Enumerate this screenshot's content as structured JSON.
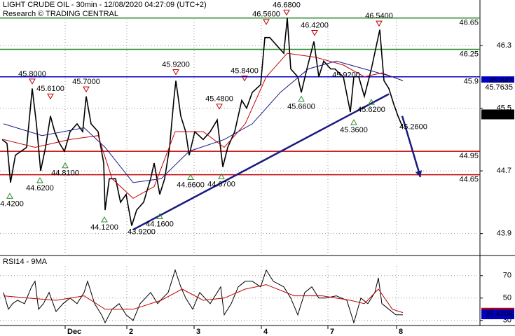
{
  "chart_data": [
    {
      "type": "line",
      "title": "LIGHT CRUDE OIL - 30min - 12/08/2020 04:27:09 (UTC+2)",
      "subtitle": "Research © TRADING CENTRAL",
      "xlim": [
        0,
        342.5
      ],
      "ylim": [
        43.62,
        46.88
      ],
      "yticks": [
        46.3,
        45.5,
        44.7,
        43.9
      ],
      "xticks": [
        {
          "value": 46.5,
          "label": "Dec"
        },
        {
          "value": 90.5,
          "label": "2"
        },
        {
          "value": 138.5,
          "label": "3"
        },
        {
          "value": 186.5,
          "label": "4"
        },
        {
          "value": 234,
          "label": "7"
        },
        {
          "value": 283,
          "label": "8"
        }
      ],
      "series": [
        {
          "color": "#000000",
          "width": 1.6,
          "x": [
            1.5,
            5,
            7.5,
            11,
            15,
            19,
            23,
            26,
            29,
            32.5,
            36,
            39,
            42.5,
            46,
            50,
            55,
            59,
            61.5,
            65,
            70,
            74,
            75,
            78,
            82.5,
            86,
            90,
            94,
            97.5,
            102.5,
            107.5,
            110,
            114,
            117.5,
            121,
            124,
            125.5,
            129,
            132.5,
            135,
            139,
            145,
            150,
            155,
            159,
            162.5,
            167.5,
            172.5,
            176,
            180,
            186,
            189,
            192.5,
            197.5,
            202.5,
            205,
            207.5,
            212.5,
            215,
            219,
            224,
            227.5,
            231,
            236,
            239,
            245,
            250,
            252.5,
            256,
            260,
            265,
            271,
            274,
            277.5,
            281,
            284,
            287.5
          ],
          "values": [
            45.1,
            45.05,
            44.55,
            44.9,
            44.95,
            45.0,
            45.75,
            45.3,
            44.7,
            45.0,
            45.4,
            45.2,
            45.05,
            44.95,
            45.2,
            45.3,
            45.2,
            45.65,
            45.3,
            45.2,
            44.8,
            44.2,
            44.6,
            44.6,
            44.3,
            44.4,
            44.0,
            44.2,
            44.3,
            44.6,
            44.8,
            44.4,
            44.6,
            45.0,
            45.6,
            45.85,
            45.4,
            45.2,
            44.9,
            45.2,
            45.1,
            45.2,
            45.35,
            44.75,
            45.0,
            45.2,
            45.6,
            45.5,
            45.7,
            45.8,
            46.4,
            46.4,
            46.3,
            46.2,
            46.65,
            46.0,
            45.9,
            45.7,
            46.0,
            46.35,
            45.9,
            46.1,
            46.0,
            46.0,
            45.9,
            45.45,
            45.9,
            45.9,
            45.65,
            46.0,
            46.5,
            45.85,
            45.75,
            45.55,
            45.4,
            45.25
          ]
        },
        {
          "color": "#c00000",
          "width": 1,
          "x": [
            2.5,
            25,
            50,
            70,
            80,
            95,
            110,
            125,
            145,
            160,
            175,
            190,
            205,
            225,
            245,
            260,
            272.5,
            287.5
          ],
          "values": [
            45.1,
            45.0,
            45.1,
            45.15,
            44.6,
            44.35,
            44.5,
            45.2,
            45.2,
            45.0,
            45.3,
            45.9,
            46.2,
            46.15,
            46.05,
            45.9,
            45.95,
            45.85
          ]
        },
        {
          "color": "#1a1a80",
          "width": 1,
          "x": [
            2.5,
            30,
            60,
            75,
            95,
            115,
            135,
            160,
            180,
            200,
            220,
            240,
            260,
            280,
            287.5
          ],
          "values": [
            45.3,
            45.15,
            45.25,
            45.0,
            44.55,
            44.6,
            44.95,
            45.1,
            45.3,
            45.7,
            46.0,
            46.1,
            46.0,
            45.9,
            45.85
          ]
        }
      ],
      "levels": [
        {
          "value": 46.65,
          "color": "#2e8b2e"
        },
        {
          "value": 46.25,
          "color": "#2e8b2e"
        },
        {
          "value": 45.9,
          "color": "#0000c0"
        },
        {
          "value": 44.95,
          "color": "#c00000"
        },
        {
          "value": 44.65,
          "color": "#c00000"
        }
      ],
      "markers": [
        {
          "x": 23,
          "y": 45.8,
          "label": "45.8000",
          "marker": "down"
        },
        {
          "x": 36,
          "y": 45.61,
          "label": "45.6100",
          "marker": "down"
        },
        {
          "x": 61.5,
          "y": 45.7,
          "label": "45.7000",
          "marker": "down"
        },
        {
          "x": 125.5,
          "y": 45.92,
          "label": "45.9200",
          "marker": "down"
        },
        {
          "x": 156.5,
          "y": 45.48,
          "label": "45.4800",
          "marker": "down"
        },
        {
          "x": 174.5,
          "y": 45.84,
          "label": "45.8400",
          "marker": "down"
        },
        {
          "x": 190,
          "y": 46.56,
          "label": "46.5600",
          "marker": "down"
        },
        {
          "x": 204.5,
          "y": 46.68,
          "label": "46.6800",
          "marker": "down"
        },
        {
          "x": 224.5,
          "y": 46.42,
          "label": "46.4200",
          "marker": "down"
        },
        {
          "x": 270.5,
          "y": 46.54,
          "label": "46.5400",
          "marker": "down"
        },
        {
          "x": 7,
          "y": 44.42,
          "label": "44.4200",
          "marker": "up"
        },
        {
          "x": 28.5,
          "y": 44.62,
          "label": "44.6200",
          "marker": "up"
        },
        {
          "x": 46.5,
          "y": 44.81,
          "label": "44.8100",
          "marker": "up"
        },
        {
          "x": 74.5,
          "y": 44.12,
          "label": "44.1200",
          "marker": "up"
        },
        {
          "x": 114,
          "y": 44.16,
          "label": "44.1600",
          "marker": "up"
        },
        {
          "x": 136,
          "y": 44.66,
          "label": "44.6600",
          "marker": "up"
        },
        {
          "x": 158,
          "y": 44.67,
          "label": "44.6700",
          "marker": "up"
        },
        {
          "x": 215,
          "y": 45.66,
          "label": "45.6600",
          "marker": "up"
        },
        {
          "x": 252.5,
          "y": 45.36,
          "label": "45.3600",
          "marker": "up"
        },
        {
          "x": 265,
          "y": 45.62,
          "label": "45.6200",
          "marker": "up"
        }
      ],
      "labels": [
        {
          "x": 101,
          "y": 43.92,
          "label": "43.9200"
        },
        {
          "x": 247,
          "y": 45.92,
          "label": "45.9200"
        },
        {
          "x": 295,
          "y": 45.26,
          "label": "45.2600"
        }
      ],
      "trendlines": [
        {
          "x": [
            95,
            277.5
          ],
          "y": [
            43.95,
            45.68
          ],
          "color": "#1a1a80"
        }
      ],
      "arrow": {
        "x": [
          287,
          300
        ],
        "y": [
          45.4,
          44.62
        ],
        "color": "#1a1a80"
      },
      "badges": [
        {
          "value": 45.843,
          "color": "#0000c0",
          "text_color": "#ffffff"
        },
        {
          "value": 45.7635,
          "color": "#ffffff",
          "text_color": "#c00000"
        },
        {
          "value": 45.42,
          "color": "#000000",
          "text_color": "#ffffff"
        }
      ]
    },
    {
      "type": "line",
      "title": "RSI14 - 9MA",
      "ylim": [
        25.5,
        88
      ],
      "yticks": [
        70,
        50,
        30
      ],
      "series": [
        {
          "color": "#000000",
          "width": 1,
          "x": [
            2.5,
            6,
            9,
            12.5,
            17.5,
            22.5,
            25,
            27.5,
            31,
            35,
            40,
            45,
            50,
            55,
            60,
            62.5,
            67.5,
            72.5,
            75,
            80,
            85,
            90,
            95,
            100,
            107.5,
            112.5,
            116,
            120,
            125,
            129,
            132.5,
            137.5,
            142.5,
            150,
            157.5,
            160,
            165,
            170,
            175,
            180,
            186,
            190,
            195,
            202.5,
            207.5,
            212.5,
            217.5,
            222.5,
            227.5,
            232.5,
            240,
            247.5,
            252.5,
            257.5,
            262.5,
            267.5,
            270,
            272.5,
            277.5,
            282.5,
            287.5
          ],
          "values": [
            55,
            40,
            45,
            48,
            45,
            60,
            65,
            40,
            45,
            55,
            38,
            45,
            50,
            45,
            55,
            65,
            45,
            35,
            28,
            40,
            45,
            35,
            30,
            45,
            55,
            45,
            50,
            55,
            75,
            60,
            50,
            40,
            55,
            45,
            60,
            35,
            45,
            60,
            65,
            65,
            60,
            75,
            65,
            60,
            50,
            35,
            55,
            60,
            50,
            50,
            52,
            48,
            28,
            50,
            45,
            55,
            68,
            45,
            40,
            35,
            35
          ]
        },
        {
          "color": "#c00000",
          "width": 1,
          "x": [
            2.5,
            20,
            40,
            60,
            75,
            95,
            115,
            130,
            145,
            160,
            175,
            190,
            210,
            230,
            250,
            260,
            270,
            280,
            287.5
          ],
          "values": [
            52,
            50,
            48,
            52,
            40,
            40,
            48,
            58,
            48,
            50,
            58,
            62,
            52,
            52,
            48,
            45,
            58,
            40,
            37
          ]
        }
      ],
      "badges": [
        {
          "value": 36.911,
          "color": "#c00000",
          "text_color": "#ffffff"
        },
        {
          "value": 35.4708,
          "color": "#0000c0",
          "text_color": "#ffffff"
        }
      ]
    }
  ]
}
